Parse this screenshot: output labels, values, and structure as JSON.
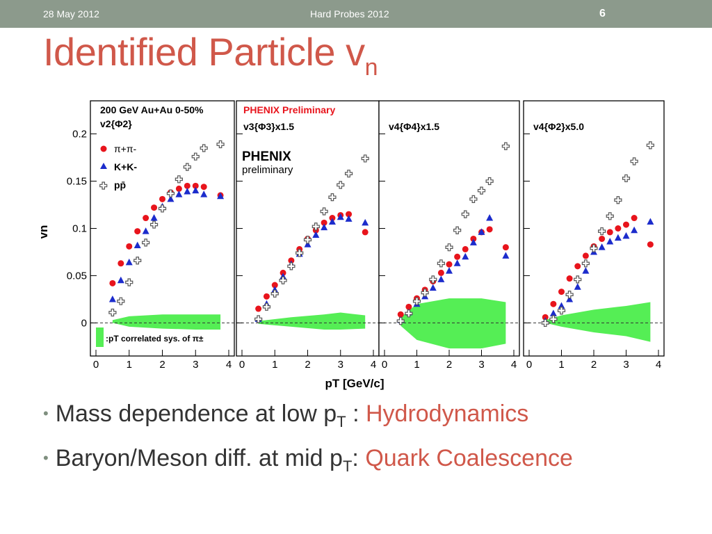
{
  "header": {
    "date": "28 May 2012",
    "conference": "Hard Probes 2012",
    "page": "6"
  },
  "slide": {
    "title": "Identified Particle v",
    "title_sub": "n"
  },
  "bullets": [
    {
      "text_a": "Mass dependence at low p",
      "sub": "T",
      "text_b": " : ",
      "highlight": "Hydrodynamics"
    },
    {
      "text_a": "Baryon/Meson diff. at mid p",
      "sub": "T",
      "text_b": ": ",
      "highlight": "Quark Coalescence"
    }
  ],
  "colors": {
    "title": "#d0584a",
    "topbar": "#8c9a8c",
    "pion": "#e8141c",
    "kaon": "#1c2ccc",
    "proton": "#555555",
    "band": "#55ee55",
    "pion_sys": "#22dddd",
    "kaon_sys": "#c8b890",
    "proton_sys": "#8898b0",
    "preliminary": "#e8141c"
  },
  "chart_data": [
    {
      "type": "scatter",
      "panel_label": "200 GeV Au+Au 0-50%",
      "observable_label": "v2{Φ2}",
      "xlim": [
        0,
        4
      ],
      "ylim": [
        -0.035,
        0.235
      ],
      "xticks": [
        "0",
        "1",
        "2",
        "3",
        "4"
      ],
      "yticks": [
        "0",
        "0.05",
        "0.1",
        "0.15",
        "0.2"
      ],
      "ylabel": "vn",
      "legend": [
        "π+π-",
        "K+K-",
        "pp̄"
      ],
      "band_label": ":pT correlated sys. of π±",
      "series": [
        {
          "name": "π+π-",
          "x": [
            0.5,
            0.75,
            1.0,
            1.25,
            1.5,
            1.75,
            2.0,
            2.25,
            2.5,
            2.75,
            3.0,
            3.25,
            3.75
          ],
          "y": [
            0.042,
            0.063,
            0.081,
            0.097,
            0.111,
            0.122,
            0.131,
            0.138,
            0.142,
            0.145,
            0.145,
            0.144,
            0.135
          ]
        },
        {
          "name": "K+K-",
          "x": [
            0.5,
            0.75,
            1.0,
            1.25,
            1.5,
            1.75,
            2.0,
            2.25,
            2.5,
            2.75,
            3.0,
            3.25,
            3.75
          ],
          "y": [
            0.025,
            0.045,
            0.064,
            0.082,
            0.097,
            0.111,
            0.123,
            0.131,
            0.136,
            0.139,
            0.14,
            0.136,
            0.134
          ]
        },
        {
          "name": "pp̄",
          "x": [
            0.5,
            0.75,
            1.0,
            1.25,
            1.5,
            1.75,
            2.0,
            2.25,
            2.5,
            2.75,
            3.0,
            3.25,
            3.75
          ],
          "y": [
            0.011,
            0.023,
            0.043,
            0.066,
            0.085,
            0.104,
            0.121,
            0.137,
            0.152,
            0.165,
            0.176,
            0.185,
            0.189
          ]
        }
      ],
      "band": {
        "x": [
          0.5,
          1.0,
          2.0,
          3.0,
          3.75
        ],
        "upper": [
          0.003,
          0.007,
          0.009,
          0.009,
          0.009
        ],
        "lower": [
          0.0,
          -0.004,
          -0.006,
          -0.007,
          -0.007
        ]
      }
    },
    {
      "type": "scatter",
      "panel_label": "PHENIX Preliminary",
      "observable_label": "v3{Φ3}x1.5",
      "logo_text": "PHENIX",
      "logo_sub": "preliminary",
      "xlim": [
        0,
        4
      ],
      "ylim": [
        -0.035,
        0.235
      ],
      "xticks": [
        "0",
        "1",
        "2",
        "3",
        "4"
      ],
      "series": [
        {
          "name": "π+π-",
          "x": [
            0.5,
            0.75,
            1.0,
            1.25,
            1.5,
            1.75,
            2.0,
            2.25,
            2.5,
            2.75,
            3.0,
            3.25,
            3.75
          ],
          "y": [
            0.015,
            0.028,
            0.04,
            0.053,
            0.066,
            0.078,
            0.089,
            0.098,
            0.106,
            0.111,
            0.114,
            0.115,
            0.096
          ]
        },
        {
          "name": "K+K-",
          "x": [
            0.5,
            0.75,
            1.0,
            1.25,
            1.5,
            1.75,
            2.0,
            2.25,
            2.5,
            2.75,
            3.0,
            3.25,
            3.75
          ],
          "y": [
            0.004,
            0.02,
            0.035,
            0.049,
            0.062,
            0.073,
            0.083,
            0.093,
            0.101,
            0.107,
            0.112,
            0.11,
            0.106
          ]
        },
        {
          "name": "pp̄",
          "x": [
            0.5,
            0.75,
            1.0,
            1.25,
            1.5,
            1.75,
            2.0,
            2.25,
            2.5,
            2.75,
            3.0,
            3.25,
            3.75
          ],
          "y": [
            0.004,
            0.017,
            0.031,
            0.045,
            0.06,
            0.074,
            0.088,
            0.102,
            0.118,
            0.133,
            0.146,
            0.158,
            0.174
          ]
        }
      ],
      "band": {
        "x": [
          0.5,
          1.5,
          2.5,
          3.0,
          3.75
        ],
        "upper": [
          0.002,
          0.006,
          0.009,
          0.011,
          0.008
        ],
        "lower": [
          -0.001,
          -0.004,
          -0.007,
          -0.007,
          -0.006
        ]
      }
    },
    {
      "type": "scatter",
      "observable_label": "v4{Φ4}x1.5",
      "xlim": [
        0,
        4
      ],
      "ylim": [
        -0.035,
        0.235
      ],
      "xticks": [
        "0",
        "1",
        "2",
        "3",
        "4"
      ],
      "series": [
        {
          "name": "π+π-",
          "x": [
            0.5,
            0.75,
            1.0,
            1.25,
            1.5,
            1.75,
            2.0,
            2.25,
            2.5,
            2.75,
            3.0,
            3.25,
            3.75
          ],
          "y": [
            0.009,
            0.017,
            0.026,
            0.035,
            0.044,
            0.053,
            0.062,
            0.07,
            0.078,
            0.089,
            0.096,
            0.099,
            0.08
          ]
        },
        {
          "name": "K+K-",
          "x": [
            0.5,
            0.75,
            1.0,
            1.25,
            1.5,
            1.75,
            2.0,
            2.25,
            2.5,
            2.75,
            3.0,
            3.25,
            3.75
          ],
          "y": [
            0.003,
            0.011,
            0.02,
            0.028,
            0.037,
            0.046,
            0.055,
            0.063,
            0.07,
            0.085,
            0.096,
            0.111,
            0.071
          ]
        },
        {
          "name": "pp̄",
          "x": [
            0.5,
            0.75,
            1.0,
            1.25,
            1.5,
            1.75,
            2.0,
            2.25,
            2.5,
            2.75,
            3.0,
            3.25,
            3.75
          ],
          "y": [
            0.002,
            0.01,
            0.023,
            0.032,
            0.046,
            0.063,
            0.08,
            0.098,
            0.115,
            0.131,
            0.14,
            0.15,
            0.187
          ]
        }
      ],
      "band": {
        "x": [
          0.5,
          1.0,
          2.0,
          3.0,
          3.75
        ],
        "upper": [
          0.006,
          0.02,
          0.026,
          0.026,
          0.022
        ],
        "lower": [
          -0.003,
          -0.018,
          -0.027,
          -0.027,
          -0.022
        ]
      }
    },
    {
      "type": "scatter",
      "observable_label": "v4{Φ2}x5.0",
      "xlim": [
        0,
        4
      ],
      "ylim": [
        -0.035,
        0.235
      ],
      "xticks": [
        "0",
        "1",
        "2",
        "3",
        "4"
      ],
      "series": [
        {
          "name": "π+π-",
          "x": [
            0.5,
            0.75,
            1.0,
            1.25,
            1.5,
            1.75,
            2.0,
            2.25,
            2.5,
            2.75,
            3.0,
            3.25,
            3.75
          ],
          "y": [
            0.006,
            0.02,
            0.033,
            0.047,
            0.06,
            0.071,
            0.081,
            0.089,
            0.096,
            0.1,
            0.104,
            0.111,
            0.083
          ]
        },
        {
          "name": "K+K-",
          "x": [
            0.5,
            0.75,
            1.0,
            1.25,
            1.5,
            1.75,
            2.0,
            2.25,
            2.5,
            2.75,
            3.0,
            3.25,
            3.75
          ],
          "y": [
            0.002,
            0.01,
            0.018,
            0.025,
            0.038,
            0.055,
            0.075,
            0.08,
            0.086,
            0.09,
            0.092,
            0.098,
            0.107
          ]
        },
        {
          "name": "pp̄",
          "x": [
            0.5,
            0.75,
            1.0,
            1.25,
            1.5,
            1.75,
            2.0,
            2.25,
            2.5,
            2.75,
            3.0,
            3.25,
            3.75
          ],
          "y": [
            0.0,
            0.004,
            0.013,
            0.03,
            0.046,
            0.063,
            0.079,
            0.097,
            0.113,
            0.13,
            0.153,
            0.171,
            0.188
          ]
        }
      ],
      "band": {
        "x": [
          0.5,
          1.0,
          2.0,
          3.0,
          3.75
        ],
        "upper": [
          0.003,
          0.008,
          0.014,
          0.018,
          0.022
        ],
        "lower": [
          0.0,
          -0.004,
          -0.01,
          -0.014,
          -0.02
        ]
      }
    }
  ],
  "xlabel": "pT [GeV/c]"
}
